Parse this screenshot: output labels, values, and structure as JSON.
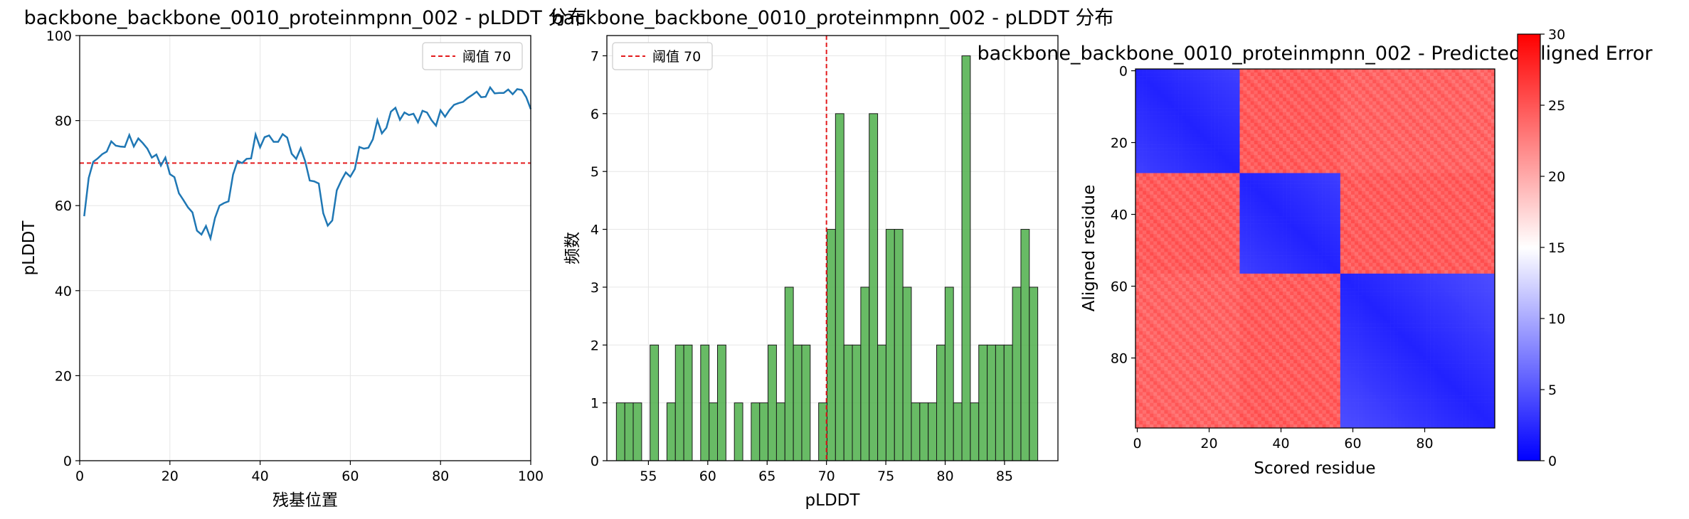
{
  "chart_data": [
    {
      "id": "line",
      "type": "line",
      "title": "backbone_backbone_0010_proteinmpnn_002 - pLDDT 分布",
      "xlabel": "残基位置",
      "ylabel": "pLDDT",
      "xlim": [
        0,
        100
      ],
      "ylim": [
        0,
        100
      ],
      "xticks": [
        0,
        20,
        40,
        60,
        80,
        100
      ],
      "yticks": [
        0,
        20,
        40,
        60,
        80,
        100
      ],
      "grid": true,
      "legend": {
        "label": "阈值 70",
        "position": "top-right"
      },
      "threshold": 70,
      "threshold_color": "#e31a1c",
      "line_color": "#1f77b4",
      "series": [
        {
          "name": "pLDDT",
          "x": [
            1,
            2,
            3,
            4,
            5,
            6,
            7,
            8,
            9,
            10,
            11,
            12,
            13,
            14,
            15,
            16,
            17,
            18,
            19,
            20,
            21,
            22,
            23,
            24,
            25,
            26,
            27,
            28,
            29,
            30,
            31,
            32,
            33,
            34,
            35,
            36,
            37,
            38,
            39,
            40,
            41,
            42,
            43,
            44,
            45,
            46,
            47,
            48,
            49,
            50,
            51,
            52,
            53,
            54,
            55,
            56,
            57,
            58,
            59,
            60,
            61,
            62,
            63,
            64,
            65,
            66,
            67,
            68,
            69,
            70,
            71,
            72,
            73,
            74,
            75,
            76,
            77,
            78,
            79,
            80,
            81,
            82,
            83,
            84,
            85,
            86,
            87,
            88,
            89,
            90,
            91,
            92,
            93,
            94,
            95,
            96,
            97,
            98,
            99,
            100
          ],
          "values": [
            57.5,
            66.5,
            70.3,
            71.1,
            72.1,
            72.7,
            75.1,
            74.1,
            73.9,
            73.8,
            76.6,
            73.9,
            75.8,
            74.7,
            73.4,
            71.3,
            72.0,
            69.4,
            71.3,
            67.4,
            66.7,
            62.9,
            61.3,
            59.6,
            58.4,
            54.1,
            53.2,
            55.2,
            52.3,
            57.1,
            60.0,
            60.6,
            61.0,
            67.3,
            70.5,
            70.0,
            71.0,
            71.1,
            76.7,
            73.7,
            76.1,
            76.5,
            75.0,
            75.0,
            76.8,
            76.0,
            72.2,
            71.0,
            73.5,
            70.4,
            65.9,
            65.7,
            65.2,
            58.2,
            55.3,
            56.5,
            63.6,
            65.9,
            67.8,
            66.8,
            68.6,
            73.8,
            73.4,
            73.6,
            75.6,
            80.1,
            77.0,
            78.3,
            82.1,
            83.0,
            80.2,
            81.9,
            81.3,
            81.6,
            79.6,
            82.3,
            81.9,
            80.1,
            78.8,
            82.4,
            80.9,
            82.5,
            83.7,
            84.1,
            84.4,
            85.3,
            86.0,
            86.8,
            85.5,
            85.6,
            87.8,
            86.4,
            86.5,
            86.5,
            87.3,
            86.2,
            87.4,
            87.2,
            85.5,
            82.7
          ]
        }
      ]
    },
    {
      "id": "hist",
      "type": "bar",
      "title": "backbone_backbone_0010_proteinmpnn_002 - pLDDT 分布",
      "xlabel": "pLDDT",
      "ylabel": "频数",
      "xlim": [
        51.5,
        89.5
      ],
      "ylim": [
        0,
        7.35
      ],
      "xticks": [
        55,
        60,
        65,
        70,
        75,
        80,
        85
      ],
      "yticks": [
        0,
        1,
        2,
        3,
        4,
        5,
        6,
        7
      ],
      "grid": true,
      "legend": {
        "label": "阈值 70",
        "position": "top-left"
      },
      "threshold": 70,
      "threshold_color": "#e31a1c",
      "bar_color": "#4daf4a",
      "bin_start": 52.3,
      "bin_width": 0.71,
      "values": [
        1,
        1,
        1,
        0,
        2,
        0,
        1,
        2,
        2,
        0,
        2,
        1,
        2,
        0,
        1,
        0,
        1,
        1,
        2,
        1,
        3,
        2,
        2,
        0,
        1,
        4,
        6,
        2,
        2,
        3,
        6,
        2,
        4,
        4,
        3,
        1,
        1,
        1,
        2,
        3,
        1,
        7,
        1,
        2,
        2,
        2,
        2,
        3,
        4,
        3
      ]
    },
    {
      "id": "pae",
      "type": "heatmap",
      "title": "backbone_backbone_0010_proteinmpnn_002 - Predicted Aligned Error",
      "xlabel": "Scored residue",
      "ylabel": "Aligned residue",
      "n": 100,
      "xticks": [
        0,
        20,
        40,
        60,
        80
      ],
      "yticks": [
        0,
        20,
        40,
        60,
        80
      ],
      "colorbar": {
        "min": 0,
        "max": 30,
        "ticks": [
          0,
          5,
          10,
          15,
          20,
          25,
          30
        ]
      },
      "colormap": "bwr",
      "domains": [
        [
          0,
          28
        ],
        [
          29,
          56
        ],
        [
          57,
          99
        ]
      ],
      "intra_domain_pae": 2,
      "inter_domain_pae": 24
    }
  ]
}
